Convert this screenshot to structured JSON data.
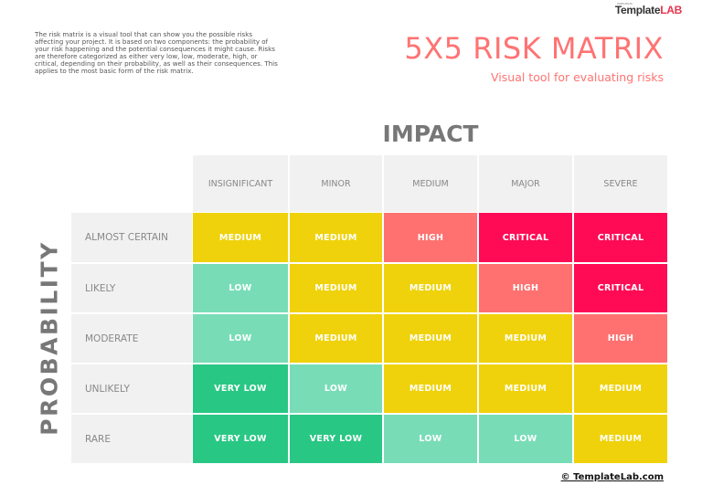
{
  "intro_text": "The risk matrix is a visual tool that can show you the possible risks affecting your project. It is based on two components: the probability of your risk happening and the potential consequences it might cause. Risks are therefore categorized as either very low, low, moderate, high, or critical, depending on their probability, as well as their consequences. This applies to the most basic form of the risk matrix.",
  "logo": {
    "prefix": "TEMPLATE BY",
    "part1": "Template",
    "part2": "LAB"
  },
  "title": "5X5 RISK MATRIX",
  "subtitle": "Visual tool for evaluating risks",
  "axis": {
    "impact": "IMPACT",
    "probability": "PROBABILITY"
  },
  "colors": {
    "VERY LOW": "#29c784",
    "LOW": "#78ddb6",
    "MEDIUM": "#efd20b",
    "HIGH": "#ff7171",
    "CRITICAL": "#ff0b55",
    "header_bg": "#f1f1f1",
    "title": "#ff7373"
  },
  "impact_levels": [
    "INSIGNIFICANT",
    "MINOR",
    "MEDIUM",
    "MAJOR",
    "SEVERE"
  ],
  "rows": [
    {
      "label": "ALMOST CERTAIN",
      "cells": [
        "MEDIUM",
        "MEDIUM",
        "HIGH",
        "CRITICAL",
        "CRITICAL"
      ]
    },
    {
      "label": "LIKELY",
      "cells": [
        "LOW",
        "MEDIUM",
        "MEDIUM",
        "HIGH",
        "CRITICAL"
      ]
    },
    {
      "label": "MODERATE",
      "cells": [
        "LOW",
        "MEDIUM",
        "MEDIUM",
        "MEDIUM",
        "HIGH"
      ]
    },
    {
      "label": "UNLIKELY",
      "cells": [
        "VERY LOW",
        "LOW",
        "MEDIUM",
        "MEDIUM",
        "MEDIUM"
      ]
    },
    {
      "label": "RARE",
      "cells": [
        "VERY LOW",
        "VERY LOW",
        "LOW",
        "LOW",
        "MEDIUM"
      ]
    }
  ],
  "footer": "© TemplateLab.com"
}
